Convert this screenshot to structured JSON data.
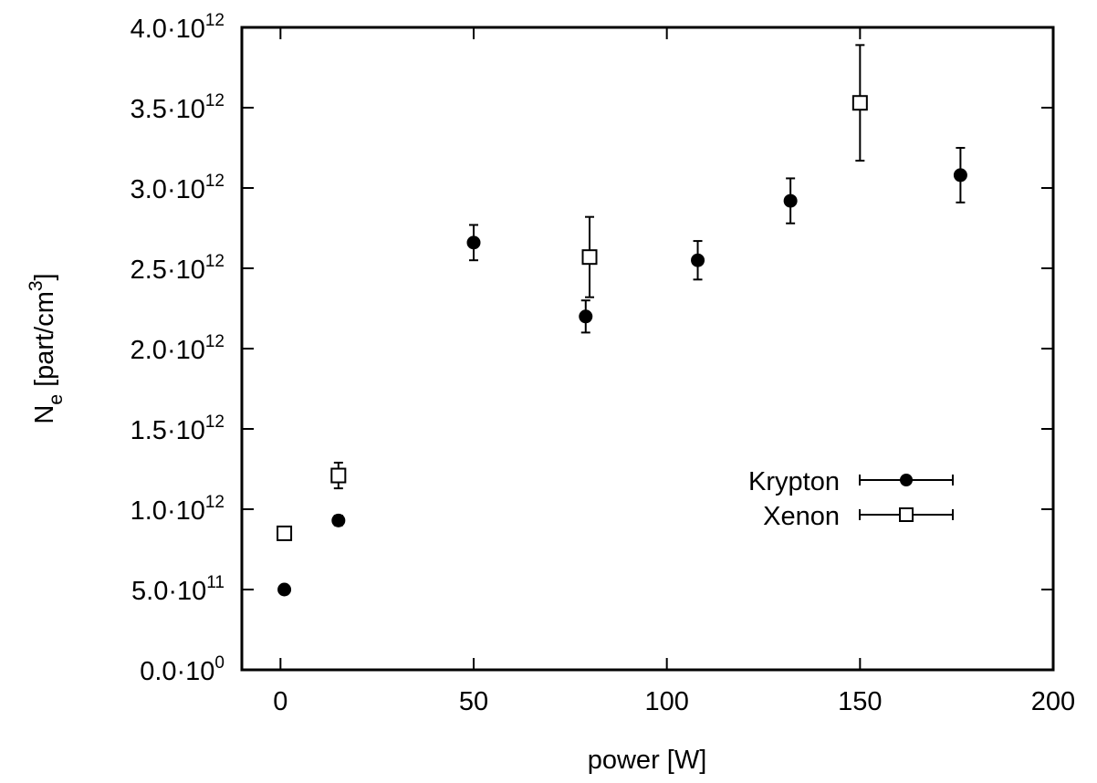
{
  "chart_data": {
    "type": "scatter",
    "title": "",
    "xlabel": "power [W]",
    "ylabel": {
      "base": "N",
      "sub": "e",
      "rest": " [part/cm",
      "sup": "3",
      "end": "]"
    },
    "xlim": [
      -10,
      200
    ],
    "ylim": [
      0,
      4000000000000.0
    ],
    "grid": false,
    "legend_position": "right",
    "x_ticks": [
      {
        "value": 0,
        "label": "0"
      },
      {
        "value": 50,
        "label": "50"
      },
      {
        "value": 100,
        "label": "100"
      },
      {
        "value": 150,
        "label": "150"
      },
      {
        "value": 200,
        "label": "200"
      }
    ],
    "y_ticks": [
      {
        "value": 0,
        "mantissa": "0.0·10",
        "exp": "0"
      },
      {
        "value": 500000000000.0,
        "mantissa": "5.0·10",
        "exp": "11"
      },
      {
        "value": 1000000000000.0,
        "mantissa": "1.0·10",
        "exp": "12"
      },
      {
        "value": 1500000000000.0,
        "mantissa": "1.5·10",
        "exp": "12"
      },
      {
        "value": 2000000000000.0,
        "mantissa": "2.0·10",
        "exp": "12"
      },
      {
        "value": 2500000000000.0,
        "mantissa": "2.5·10",
        "exp": "12"
      },
      {
        "value": 3000000000000.0,
        "mantissa": "3.0·10",
        "exp": "12"
      },
      {
        "value": 3500000000000.0,
        "mantissa": "3.5·10",
        "exp": "12"
      },
      {
        "value": 4000000000000.0,
        "mantissa": "4.0·10",
        "exp": "12"
      }
    ],
    "series": [
      {
        "name": "Krypton",
        "marker": "filled-circle",
        "points": [
          {
            "x": 1,
            "y": 500000000000.0,
            "err": 20000000000.0
          },
          {
            "x": 15,
            "y": 930000000000.0,
            "err": 30000000000.0
          },
          {
            "x": 50,
            "y": 2660000000000.0,
            "err": 110000000000.0
          },
          {
            "x": 79,
            "y": 2200000000000.0,
            "err": 100000000000.0
          },
          {
            "x": 108,
            "y": 2550000000000.0,
            "err": 120000000000.0
          },
          {
            "x": 132,
            "y": 2920000000000.0,
            "err": 140000000000.0
          },
          {
            "x": 176,
            "y": 3080000000000.0,
            "err": 170000000000.0
          }
        ]
      },
      {
        "name": "Xenon",
        "marker": "open-square",
        "points": [
          {
            "x": 1,
            "y": 850000000000.0,
            "err": 20000000000.0
          },
          {
            "x": 15,
            "y": 1210000000000.0,
            "err": 80000000000.0
          },
          {
            "x": 80,
            "y": 2570000000000.0,
            "err": 250000000000.0
          },
          {
            "x": 150,
            "y": 3530000000000.0,
            "err": 360000000000.0
          }
        ]
      }
    ]
  }
}
